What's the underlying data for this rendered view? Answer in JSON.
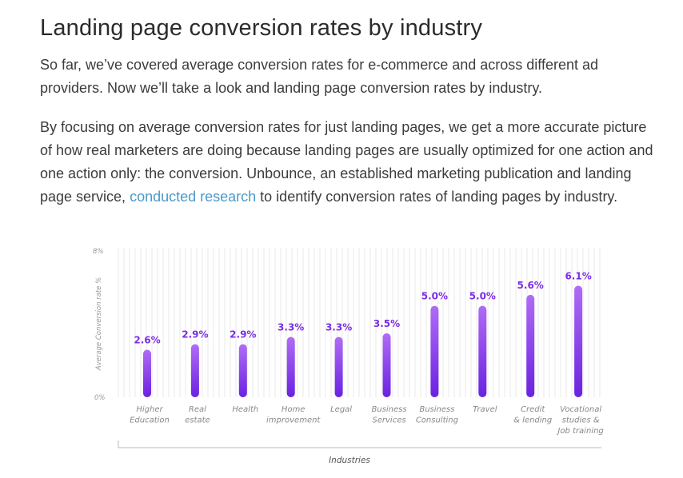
{
  "article": {
    "title": "Landing page conversion rates by industry",
    "p1": "So far, we’ve covered average conversion rates for e-commerce and across different ad providers. Now we’ll take a look and landing page conversion rates by industry.",
    "p2_before": "By focusing on average conversion rates for just landing pages, we get a more accurate picture of how real marketers are doing because landing pages are usually optimized for one action and one action only: the conversion. Unbounce, an established marketing publication and landing page service, ",
    "p2_link": "conducted research",
    "p2_after": " to identify conversion rates of landing pages by industry."
  },
  "colors": {
    "bar_top": "#b06cf5",
    "bar_bottom": "#6a22e0",
    "label": "#7b2fe3",
    "grid": "#e9e9e9"
  },
  "chart_data": {
    "type": "bar",
    "title": "",
    "xlabel": "Industries",
    "ylabel": "Average Conversion rate %",
    "ylim": [
      0,
      8
    ],
    "y_ticks": [
      "0%",
      "8%"
    ],
    "categories": [
      [
        "Higher",
        "Education"
      ],
      [
        "Real",
        "estate"
      ],
      [
        "Health"
      ],
      [
        "Home",
        "improvement"
      ],
      [
        "Legal"
      ],
      [
        "Business",
        "Services"
      ],
      [
        "Business",
        "Consulting"
      ],
      [
        "Travel"
      ],
      [
        "Credit",
        "& lending"
      ],
      [
        "Vocational",
        "studies &",
        "Job training"
      ]
    ],
    "values": [
      2.6,
      2.9,
      2.9,
      3.3,
      3.3,
      3.5,
      5.0,
      5.0,
      5.6,
      6.1
    ],
    "data_labels": [
      "2.6%",
      "2.9%",
      "2.9%",
      "3.3%",
      "3.3%",
      "3.5%",
      "5.0%",
      "5.0%",
      "5.6%",
      "6.1%"
    ]
  }
}
